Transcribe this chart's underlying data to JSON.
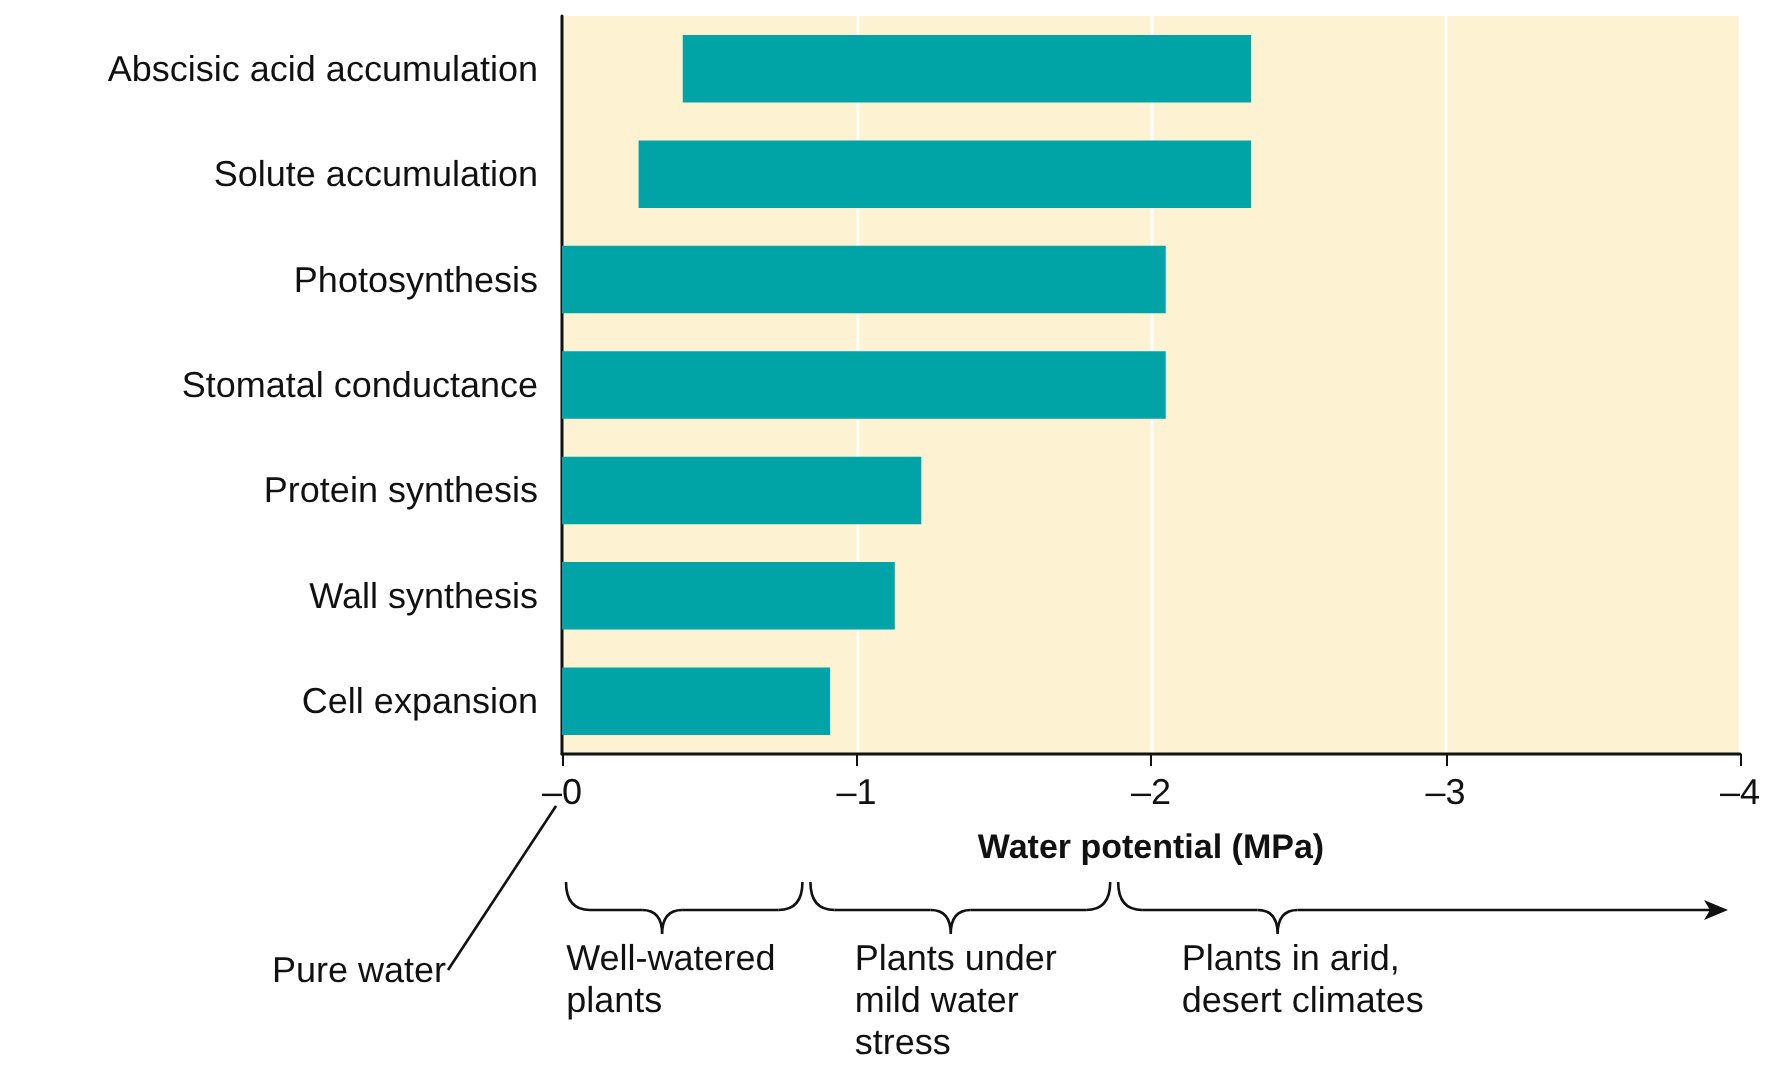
{
  "chart_data": {
    "type": "bar",
    "orientation": "horizontal",
    "xlabel": "Water potential (MPa)",
    "categories": [
      "Abscisic acid accumulation",
      "Solute accumulation",
      "Photosynthesis",
      "Stomatal conductance",
      "Protein synthesis",
      "Wall synthesis",
      "Cell expansion"
    ],
    "base": [
      -0.41,
      -0.26,
      0,
      0,
      0,
      0,
      0
    ],
    "values": [
      -1.93,
      -2.08,
      -2.05,
      -2.05,
      -1.22,
      -1.13,
      -0.91
    ],
    "color": "#00a3a6",
    "xlim": [
      0,
      -4
    ],
    "xticks": [
      {
        "value": 0,
        "label": "–0"
      },
      {
        "value": -1,
        "label": "–1"
      },
      {
        "value": -2,
        "label": "–2"
      },
      {
        "value": -3,
        "label": "–3"
      },
      {
        "value": -4,
        "label": "–4"
      }
    ],
    "grid": "x",
    "annotations": [
      "Pure water",
      "Well-watered plants",
      "Plants under mild water stress",
      "Plants in arid, desert climates"
    ]
  }
}
